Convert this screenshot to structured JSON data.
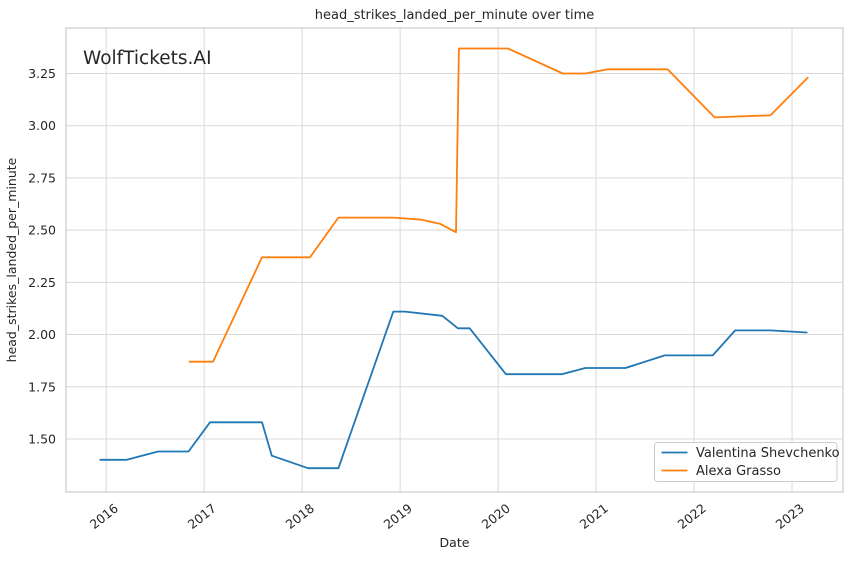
{
  "watermark": "WolfTickets.AI",
  "chart_data": {
    "type": "line",
    "title": "head_strikes_landed_per_minute over time",
    "xlabel": "Date",
    "ylabel": "head_strikes_landed_per_minute",
    "grid": true,
    "legend_position": "lower right",
    "xlim": [
      2015.59,
      2023.52
    ],
    "ylim": [
      1.246,
      3.468
    ],
    "x_ticks": [
      2016,
      2017,
      2018,
      2019,
      2020,
      2021,
      2022,
      2023
    ],
    "x_tick_labels": [
      "2016",
      "2017",
      "2018",
      "2019",
      "2020",
      "2021",
      "2022",
      "2023"
    ],
    "y_ticks": [
      1.5,
      1.75,
      2.0,
      2.25,
      2.5,
      2.75,
      3.0,
      3.25
    ],
    "y_tick_labels": [
      "1.50",
      "1.75",
      "2.00",
      "2.25",
      "2.50",
      "2.75",
      "3.00",
      "3.25"
    ],
    "style": {
      "grid_color": "#d9d9d9",
      "spine_color": "#cccccc",
      "text_color": "#262626",
      "watermark_color": "#cdcdcd",
      "background": "#ffffff"
    },
    "series": [
      {
        "name": "Valentina Shevchenko",
        "color": "#1f77b4",
        "points": [
          [
            2015.94,
            1.4
          ],
          [
            2016.21,
            1.4
          ],
          [
            2016.53,
            1.44
          ],
          [
            2016.84,
            1.44
          ],
          [
            2017.06,
            1.58
          ],
          [
            2017.59,
            1.58
          ],
          [
            2017.69,
            1.42
          ],
          [
            2018.06,
            1.36
          ],
          [
            2018.37,
            1.36
          ],
          [
            2018.93,
            2.11
          ],
          [
            2019.05,
            2.11
          ],
          [
            2019.43,
            2.09
          ],
          [
            2019.59,
            2.03
          ],
          [
            2019.71,
            2.03
          ],
          [
            2020.08,
            1.81
          ],
          [
            2020.65,
            1.81
          ],
          [
            2020.89,
            1.84
          ],
          [
            2021.3,
            1.84
          ],
          [
            2021.7,
            1.9
          ],
          [
            2022.19,
            1.9
          ],
          [
            2022.42,
            2.02
          ],
          [
            2022.78,
            2.02
          ],
          [
            2023.15,
            2.01
          ]
        ]
      },
      {
        "name": "Alexa Grasso",
        "color": "#ff7f0e",
        "points": [
          [
            2016.85,
            1.87
          ],
          [
            2017.09,
            1.87
          ],
          [
            2017.59,
            2.37
          ],
          [
            2018.08,
            2.37
          ],
          [
            2018.37,
            2.56
          ],
          [
            2018.93,
            2.56
          ],
          [
            2019.22,
            2.55
          ],
          [
            2019.41,
            2.53
          ],
          [
            2019.57,
            2.49
          ],
          [
            2019.6,
            3.37
          ],
          [
            2020.1,
            3.37
          ],
          [
            2020.66,
            3.25
          ],
          [
            2020.89,
            3.25
          ],
          [
            2021.12,
            3.27
          ],
          [
            2021.73,
            3.27
          ],
          [
            2022.21,
            3.04
          ],
          [
            2022.78,
            3.05
          ],
          [
            2023.16,
            3.23
          ]
        ]
      }
    ]
  }
}
